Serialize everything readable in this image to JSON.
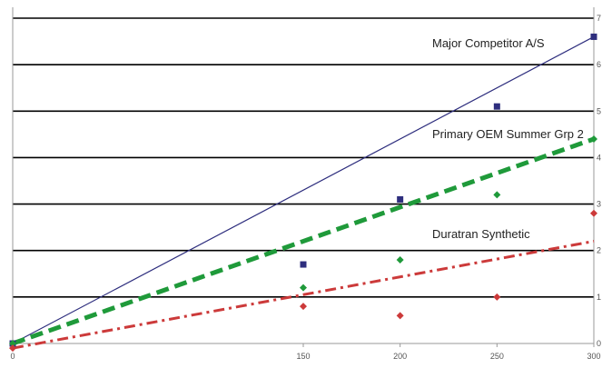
{
  "chart_data": {
    "type": "scatter",
    "title": "",
    "xlabel": "",
    "ylabel": "",
    "xlim": [
      0,
      300
    ],
    "ylim": [
      0,
      7
    ],
    "x_ticks": [
      0,
      150,
      200,
      250,
      300
    ],
    "x_tick_labels": [
      "0",
      "150",
      "200",
      "250",
      "300"
    ],
    "y_ticks": [
      0,
      1,
      2,
      3,
      4,
      5,
      6,
      7
    ],
    "y_tick_labels": [
      "0",
      "1",
      "2",
      "3",
      "4",
      "5",
      "6",
      "7"
    ],
    "grid": "horizontal",
    "series": [
      {
        "name": "Major Competitor A/S",
        "color": "#2e2e7e",
        "marker": "square",
        "line_style": "solid",
        "points": [
          [
            0,
            0.0
          ],
          [
            150,
            1.7
          ],
          [
            200,
            3.1
          ],
          [
            250,
            5.1
          ],
          [
            300,
            6.6
          ]
        ],
        "trend": [
          [
            0,
            0.0
          ],
          [
            300,
            6.6
          ]
        ]
      },
      {
        "name": "Primary OEM Summer Grp 2",
        "color": "#1f9a3a",
        "marker": "diamond",
        "line_style": "dashed",
        "points": [
          [
            0,
            0.0
          ],
          [
            150,
            1.2
          ],
          [
            200,
            1.8
          ],
          [
            250,
            3.2
          ],
          [
            300,
            4.4
          ]
        ],
        "trend": [
          [
            0,
            0.0
          ],
          [
            300,
            4.4
          ]
        ]
      },
      {
        "name": "Duratran Synthetic",
        "color": "#cc3a3a",
        "marker": "diamond",
        "line_style": "dashdot",
        "points": [
          [
            0,
            -0.1
          ],
          [
            150,
            0.8
          ],
          [
            200,
            0.6
          ],
          [
            250,
            1.0
          ],
          [
            300,
            2.8
          ]
        ],
        "trend": [
          [
            0,
            -0.1
          ],
          [
            300,
            2.2
          ]
        ]
      }
    ]
  }
}
